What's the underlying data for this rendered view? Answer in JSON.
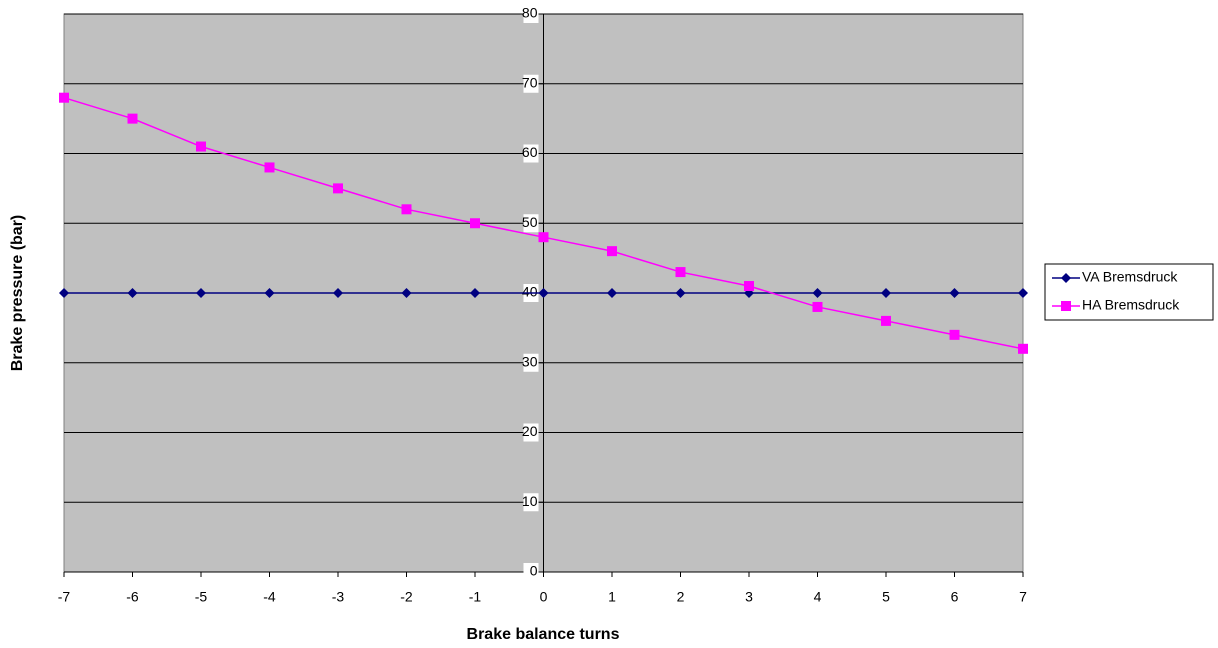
{
  "chart_data": {
    "type": "line",
    "x_label": "Brake balance turns",
    "y_label": "Brake pressure (bar)",
    "x": [
      -7,
      -6,
      -5,
      -4,
      -3,
      -2,
      -1,
      0,
      1,
      2,
      3,
      4,
      5,
      6,
      7
    ],
    "series": [
      {
        "name": "VA Bremsdruck",
        "color": "#000080",
        "marker": "diamond",
        "values": [
          40,
          40,
          40,
          40,
          40,
          40,
          40,
          40,
          40,
          40,
          40,
          40,
          40,
          40,
          40
        ]
      },
      {
        "name": "HA Bremsdruck",
        "color": "#ff00ff",
        "marker": "square",
        "values": [
          68,
          65,
          61,
          58,
          55,
          52,
          50,
          48,
          46,
          43,
          41,
          38,
          36,
          34,
          32
        ]
      }
    ],
    "xlim": [
      -7,
      7
    ],
    "xticks": [
      -7,
      -6,
      -5,
      -4,
      -3,
      -2,
      -1,
      0,
      1,
      2,
      3,
      4,
      5,
      6,
      7
    ],
    "ylim": [
      0,
      80
    ],
    "yticks": [
      0,
      10,
      20,
      30,
      40,
      50,
      60,
      70,
      80
    ],
    "grid": true,
    "legend": "right"
  }
}
